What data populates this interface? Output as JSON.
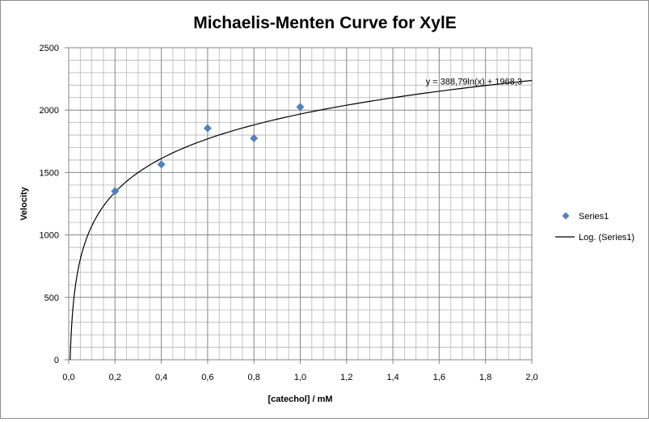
{
  "chart_data": {
    "type": "scatter",
    "title": "Michaelis-Menten Curve for XylE",
    "xlabel": "[catechol] / mM",
    "ylabel": "Velocity",
    "xlim": [
      0,
      2
    ],
    "ylim": [
      0,
      2500
    ],
    "x_ticks": [
      "0,0",
      "0,2",
      "0,4",
      "0,6",
      "0,8",
      "1,0",
      "1,2",
      "1,4",
      "1,6",
      "1,8",
      "2,0"
    ],
    "y_ticks": [
      "0",
      "500",
      "1000",
      "1500",
      "2000",
      "2500"
    ],
    "x_tick_values": [
      0,
      0.2,
      0.4,
      0.6,
      0.8,
      1.0,
      1.2,
      1.4,
      1.6,
      1.8,
      2.0
    ],
    "y_tick_values": [
      0,
      500,
      1000,
      1500,
      2000,
      2500
    ],
    "grid": true,
    "series": [
      {
        "name": "Series1",
        "color": "#4f81bd",
        "marker": "diamond",
        "x": [
          0.2,
          0.4,
          0.6,
          0.8,
          1.0
        ],
        "y": [
          1350,
          1565,
          1855,
          1775,
          2025
        ]
      }
    ],
    "trendline": {
      "name": "Log. (Series1)",
      "type": "logarithmic",
      "color": "#000000",
      "a": 388.79,
      "b": 1968.3,
      "equation_label": "y = 388,79ln(x) + 1968,3"
    },
    "legend_position": "right"
  }
}
